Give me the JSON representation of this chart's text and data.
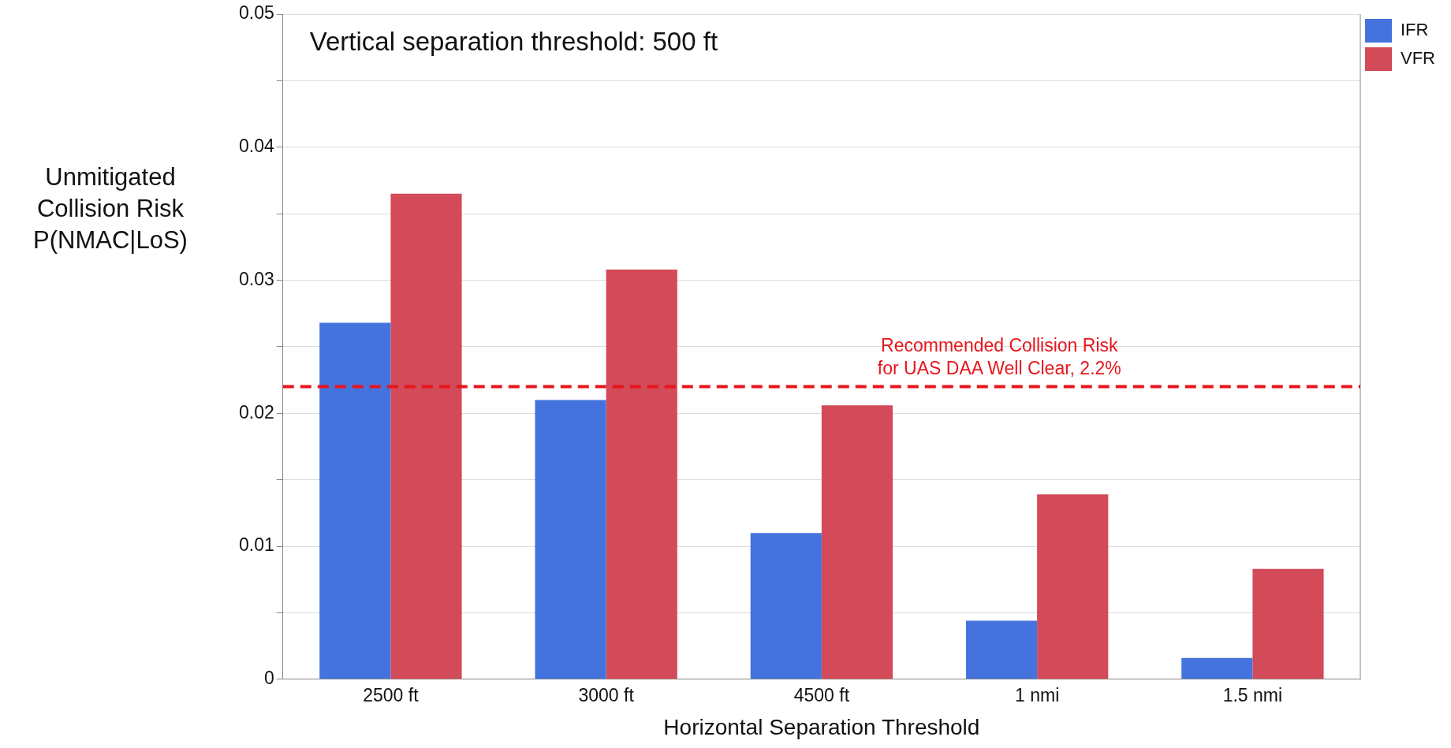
{
  "chart_data": {
    "type": "bar",
    "xlabel": "Horizontal Separation Threshold",
    "ylabel": "Unmitigated\nCollision Risk\nP(NMAC|LoS)",
    "categories": [
      "2500 ft",
      "3000 ft",
      "4500 ft",
      "1 nmi",
      "1.5 nmi"
    ],
    "series": [
      {
        "name": "IFR",
        "color": "#4573de",
        "values": [
          0.0268,
          0.021,
          0.011,
          0.0044,
          0.0016
        ]
      },
      {
        "name": "VFR",
        "color": "#d34a58",
        "values": [
          0.0365,
          0.0308,
          0.0206,
          0.0139,
          0.0083
        ]
      }
    ],
    "ylim": [
      0,
      0.05
    ],
    "yticks": [
      0,
      {
        "value": 0.005,
        "label": null
      },
      0.01,
      {
        "value": 0.015,
        "label": null
      },
      0.02,
      {
        "value": 0.025,
        "label": null
      },
      0.03,
      {
        "value": 0.035,
        "label": null
      },
      0.04,
      {
        "value": 0.045,
        "label": null
      },
      0.05
    ],
    "grid": "y",
    "legend": "top right",
    "ref_lines": [
      {
        "axis": "y",
        "value": 0.022,
        "label": "Recommended Collision Risk\nfor UAS DAA Well Clear, 2.2%",
        "color": "#e8151b",
        "line_style": "dashed"
      }
    ],
    "annotations": [
      "Vertical separation threshold: 500 ft"
    ]
  }
}
